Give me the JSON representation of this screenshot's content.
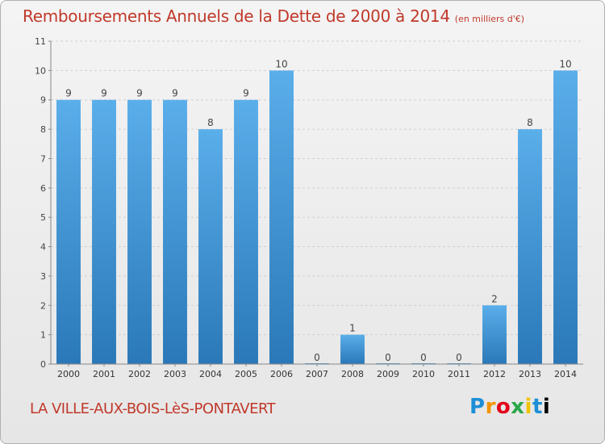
{
  "chart_data": {
    "type": "bar",
    "title": "Remboursements Annuels de la Dette de 2000 à 2014",
    "unit": "(en milliers d'€)",
    "categories": [
      "2000",
      "2001",
      "2002",
      "2003",
      "2004",
      "2005",
      "2006",
      "2007",
      "2008",
      "2009",
      "2010",
      "2011",
      "2012",
      "2013",
      "2014"
    ],
    "values": [
      9,
      9,
      9,
      9,
      8,
      9,
      10,
      0,
      1,
      0,
      0,
      0,
      2,
      8,
      10
    ],
    "ylim": [
      0,
      11
    ],
    "yticks": [
      0,
      1,
      2,
      3,
      4,
      5,
      6,
      7,
      8,
      9,
      10,
      11
    ],
    "grid": true,
    "bar_color": "#3d94d6"
  },
  "commune": "LA VILLE-AUX-BOIS-LèS-PONTAVERT",
  "logo": [
    "P",
    "r",
    "o",
    "x",
    "i",
    "t",
    "i"
  ],
  "logo_text": "Proxiti"
}
